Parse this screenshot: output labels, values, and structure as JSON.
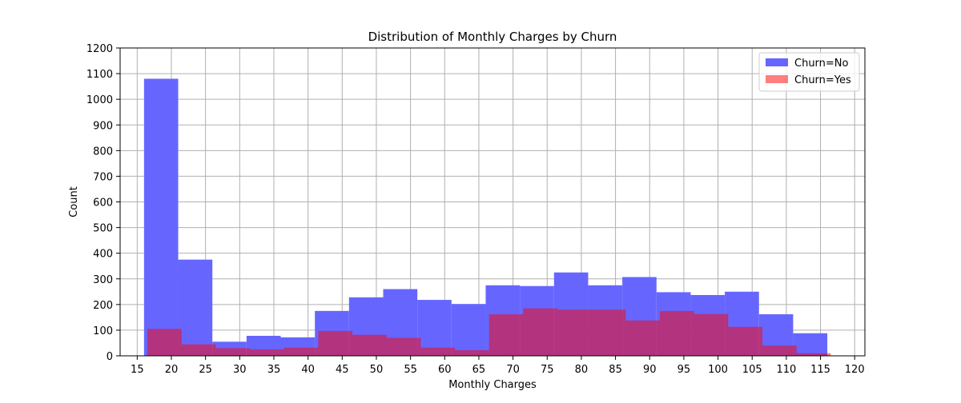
{
  "chart_data": {
    "type": "bar",
    "title": "Distribution of Monthly Charges by Churn",
    "xlabel": "Monthly Charges",
    "ylabel": "Count",
    "xlim": [
      12.5,
      121.5
    ],
    "ylim": [
      0,
      1200
    ],
    "xticks": [
      15,
      20,
      25,
      30,
      35,
      40,
      45,
      50,
      55,
      60,
      65,
      70,
      75,
      80,
      85,
      90,
      95,
      100,
      105,
      110,
      115,
      120
    ],
    "yticks": [
      0,
      100,
      200,
      300,
      400,
      500,
      600,
      700,
      800,
      900,
      1000,
      1100,
      1200
    ],
    "grid": true,
    "legend_position": "top-right",
    "series": [
      {
        "name": "Churn=No",
        "color": "#6666ff",
        "bin_edges": [
          16.0,
          21.0,
          26.0,
          31.0,
          36.0,
          41.0,
          46.0,
          51.0,
          56.0,
          61.0,
          66.0,
          71.0,
          76.0,
          81.0,
          86.0,
          91.0,
          96.0,
          101.0,
          106.0,
          111.0,
          116.0
        ],
        "values": [
          1080,
          375,
          55,
          78,
          72,
          175,
          228,
          260,
          218,
          202,
          275,
          272,
          325,
          275,
          307,
          248,
          237,
          250,
          162,
          88
        ]
      },
      {
        "name": "Churn=Yes",
        "color": "#ff0000",
        "opacity": 0.5,
        "bin_edges": [
          16.5,
          21.5,
          26.5,
          31.5,
          36.5,
          41.5,
          46.5,
          51.5,
          56.5,
          61.5,
          66.5,
          71.5,
          76.5,
          81.5,
          86.5,
          91.5,
          96.5,
          101.5,
          106.5,
          111.5,
          116.5
        ],
        "values": [
          105,
          45,
          30,
          25,
          32,
          97,
          82,
          70,
          32,
          22,
          162,
          185,
          180,
          180,
          138,
          175,
          163,
          113,
          40,
          10
        ]
      }
    ]
  }
}
